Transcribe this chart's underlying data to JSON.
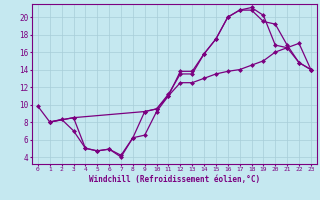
{
  "xlabel": "Windchill (Refroidissement éolien,°C)",
  "bg_color": "#c5e8f0",
  "line_color": "#7b0080",
  "grid_color": "#a8cdd8",
  "xlim": [
    -0.5,
    23.5
  ],
  "ylim": [
    3.2,
    21.5
  ],
  "xticks": [
    0,
    1,
    2,
    3,
    4,
    5,
    6,
    7,
    8,
    9,
    10,
    11,
    12,
    13,
    14,
    15,
    16,
    17,
    18,
    19,
    20,
    21,
    22,
    23
  ],
  "yticks": [
    4,
    6,
    8,
    10,
    12,
    14,
    16,
    18,
    20
  ],
  "line1_x": [
    0,
    1,
    3,
    4,
    5,
    6,
    7,
    8,
    9,
    10,
    11,
    12,
    13,
    14,
    15,
    16,
    17,
    18,
    19,
    20,
    21,
    22,
    23
  ],
  "line1_y": [
    9.8,
    8.0,
    8.5,
    5.0,
    4.7,
    4.9,
    4.0,
    6.2,
    6.5,
    9.2,
    11.0,
    13.8,
    13.8,
    15.8,
    17.5,
    20.0,
    20.8,
    21.1,
    20.2,
    16.8,
    16.5,
    14.8,
    14.0
  ],
  "line2_x": [
    1,
    2,
    3,
    4,
    5,
    6,
    7,
    8,
    9,
    10,
    11,
    12,
    13,
    14,
    15,
    16,
    17,
    18,
    19,
    20,
    21,
    22,
    23
  ],
  "line2_y": [
    8.0,
    8.3,
    7.0,
    5.0,
    4.7,
    4.9,
    4.2,
    6.2,
    9.2,
    9.5,
    11.2,
    13.5,
    13.5,
    15.8,
    17.5,
    20.0,
    20.8,
    20.8,
    19.5,
    19.2,
    16.8,
    14.8,
    14.0
  ],
  "line3_x": [
    1,
    3,
    9,
    10,
    11,
    12,
    13,
    14,
    15,
    16,
    17,
    18,
    19,
    20,
    21,
    22,
    23
  ],
  "line3_y": [
    8.0,
    8.5,
    9.2,
    9.5,
    11.0,
    12.5,
    12.5,
    13.0,
    13.5,
    13.8,
    14.0,
    14.5,
    15.0,
    16.0,
    16.5,
    17.0,
    14.0
  ],
  "markersize": 2.5,
  "linewidth": 0.9
}
